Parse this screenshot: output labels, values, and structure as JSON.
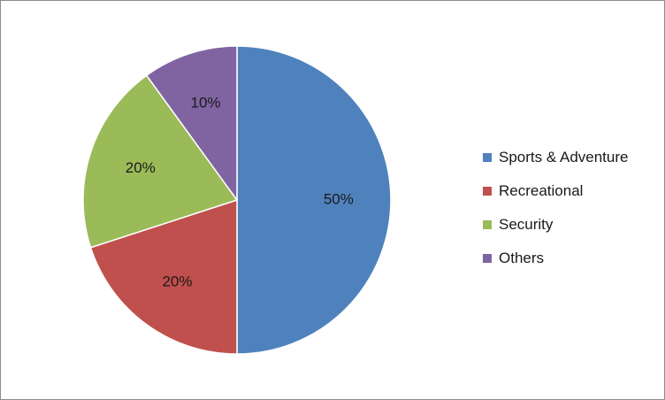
{
  "chart_data": {
    "type": "pie",
    "title": "",
    "categories": [
      "Sports & Adventure",
      "Recreational",
      "Security",
      "Others"
    ],
    "values": [
      50,
      20,
      20,
      10
    ],
    "labels": [
      "50%",
      "20%",
      "20%",
      "10%"
    ],
    "colors": [
      "#4F81BD",
      "#C0504D",
      "#9BBB59",
      "#8064A2"
    ],
    "legend_position": "right"
  },
  "legend": {
    "items": [
      {
        "label": "Sports & Adventure",
        "color": "#4F81BD"
      },
      {
        "label": "Recreational",
        "color": "#C0504D"
      },
      {
        "label": "Security",
        "color": "#9BBB59"
      },
      {
        "label": "Others",
        "color": "#8064A2"
      }
    ]
  }
}
